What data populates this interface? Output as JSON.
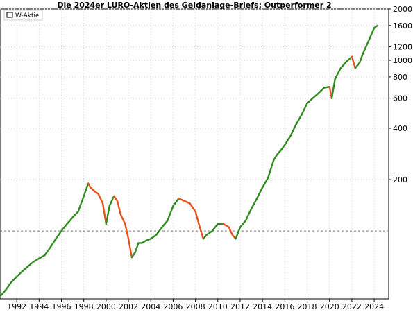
{
  "chart_data": {
    "type": "line",
    "title": "Die 2024er LURO-Aktien des Geldanlage-Briefs: Outperformer 2",
    "y_scale": "log",
    "ylim": [
      40,
      2000
    ],
    "y_ticks": [
      {
        "value": 2000,
        "label": "2000"
      },
      {
        "value": 1600,
        "label": "1600"
      },
      {
        "value": 1200,
        "label": "1200"
      },
      {
        "value": 1000,
        "label": "1000"
      },
      {
        "value": 800,
        "label": "800"
      },
      {
        "value": 600,
        "label": "600"
      },
      {
        "value": 400,
        "label": "400"
      },
      {
        "value": 200,
        "label": "200"
      }
    ],
    "xlim": [
      1990.5,
      2025.3
    ],
    "x_ticks": [
      "1992",
      "1994",
      "1996",
      "1998",
      "2000",
      "2002",
      "2004",
      "2006",
      "2008",
      "2010",
      "2012",
      "2014",
      "2016",
      "2018",
      "2020",
      "2022",
      "2024"
    ],
    "reference_line": {
      "value": 100,
      "style": "dashed"
    },
    "grid": true,
    "legend": {
      "placement": "top-left",
      "entries": [
        "W-Aktie"
      ]
    },
    "colors": {
      "up": "#2e8b1e",
      "down": "#e8521a",
      "grid": "#cccccc",
      "ref": "#777777"
    },
    "series": [
      {
        "name": "W-Aktie",
        "x": [
          1990.6,
          1991.0,
          1991.5,
          1992.0,
          1992.5,
          1993.0,
          1993.5,
          1994.0,
          1994.5,
          1995.0,
          1995.5,
          1996.0,
          1996.5,
          1997.0,
          1997.5,
          1998.0,
          1998.4,
          1998.6,
          1999.0,
          1999.3,
          1999.7,
          2000.0,
          2000.3,
          2000.7,
          2001.0,
          2001.3,
          2001.7,
          2002.0,
          2002.3,
          2002.6,
          2002.9,
          2003.2,
          2003.6,
          2004.0,
          2004.5,
          2005.0,
          2005.5,
          2006.0,
          2006.5,
          2007.0,
          2007.5,
          2008.0,
          2008.3,
          2008.7,
          2009.0,
          2009.5,
          2010.0,
          2010.5,
          2011.0,
          2011.3,
          2011.6,
          2012.0,
          2012.5,
          2013.0,
          2013.5,
          2014.0,
          2014.5,
          2015.0,
          2015.3,
          2015.7,
          2016.0,
          2016.5,
          2017.0,
          2017.5,
          2018.0,
          2018.5,
          2019.0,
          2019.5,
          2020.0,
          2020.2,
          2020.5,
          2021.0,
          2021.5,
          2022.0,
          2022.3,
          2022.7,
          2023.0,
          2023.5,
          2024.0,
          2024.3
        ],
        "y": [
          42,
          45,
          50,
          54,
          58,
          62,
          66,
          69,
          72,
          80,
          90,
          100,
          110,
          120,
          130,
          160,
          190,
          180,
          170,
          165,
          145,
          110,
          140,
          160,
          150,
          125,
          110,
          90,
          70,
          75,
          85,
          85,
          88,
          90,
          95,
          105,
          115,
          140,
          155,
          150,
          145,
          130,
          110,
          90,
          95,
          100,
          110,
          110,
          105,
          95,
          90,
          105,
          115,
          135,
          155,
          180,
          205,
          260,
          280,
          300,
          320,
          360,
          420,
          480,
          560,
          600,
          640,
          690,
          700,
          600,
          780,
          900,
          980,
          1050,
          900,
          970,
          1100,
          1300,
          1550,
          1600
        ]
      }
    ]
  }
}
